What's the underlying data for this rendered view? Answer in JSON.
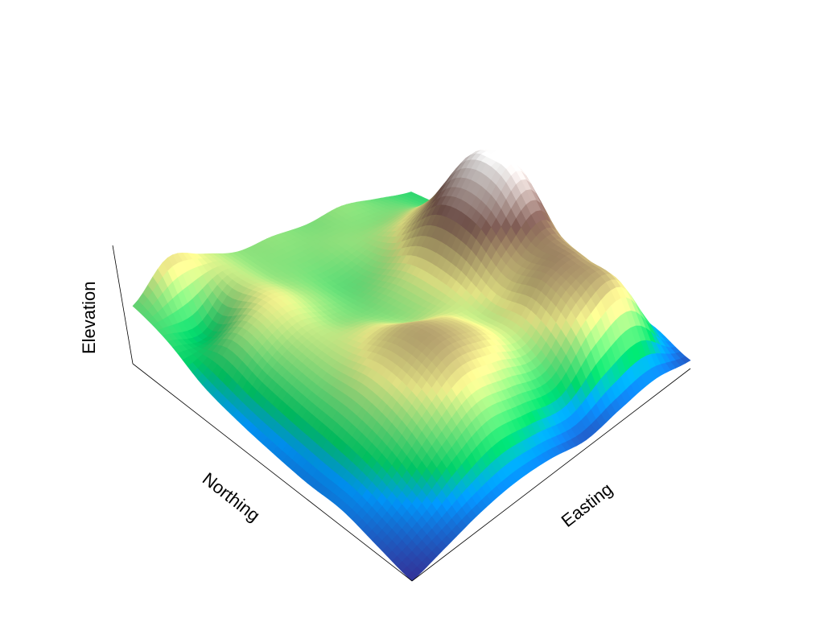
{
  "chart_data": {
    "type": "surface",
    "colormap": "terrain",
    "grid": false,
    "ticks": false,
    "xlabel": "Easting",
    "ylabel": "Northing",
    "zlabel": "Elevation",
    "zlim": [
      0,
      1
    ],
    "z_grid_rows_northing_cols_easting": [
      [
        0.0,
        0.05,
        0.1,
        0.12,
        0.1,
        0.05,
        0.08,
        0.1,
        0.05
      ],
      [
        0.05,
        0.15,
        0.3,
        0.4,
        0.35,
        0.3,
        0.5,
        0.55,
        0.15
      ],
      [
        0.1,
        0.25,
        0.45,
        0.6,
        0.55,
        0.45,
        0.65,
        0.62,
        0.2
      ],
      [
        0.1,
        0.3,
        0.5,
        0.62,
        0.55,
        0.45,
        0.62,
        0.7,
        0.3
      ],
      [
        0.12,
        0.32,
        0.45,
        0.5,
        0.42,
        0.5,
        0.8,
        0.98,
        0.4
      ],
      [
        0.15,
        0.35,
        0.45,
        0.4,
        0.38,
        0.5,
        0.8,
        0.95,
        0.35
      ],
      [
        0.2,
        0.4,
        0.5,
        0.42,
        0.35,
        0.4,
        0.55,
        0.6,
        0.3
      ],
      [
        0.3,
        0.25,
        0.45,
        0.4,
        0.38,
        0.4,
        0.4,
        0.4,
        0.3
      ],
      [
        0.35,
        0.55,
        0.48,
        0.4,
        0.4,
        0.38,
        0.4,
        0.35,
        0.3
      ]
    ]
  }
}
